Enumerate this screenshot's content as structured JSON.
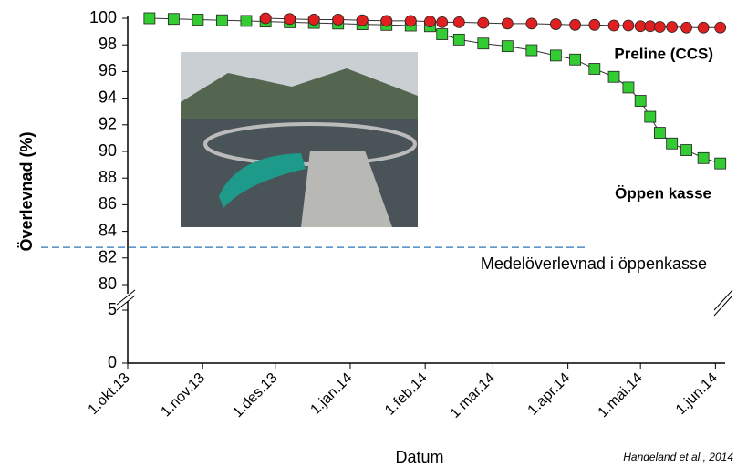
{
  "chart_data": {
    "type": "line",
    "xlabel": "Datum",
    "ylabel": "Överlevnad (%)",
    "source": "Handeland et al., 2014",
    "x": [
      "2013-10-10",
      "2013-10-20",
      "2013-10-30",
      "2013-11-09",
      "2013-11-19",
      "2013-11-27",
      "2013-12-07",
      "2013-12-17",
      "2013-12-27",
      "2014-01-06",
      "2014-01-16",
      "2014-01-26",
      "2014-02-03",
      "2014-02-08",
      "2014-02-15",
      "2014-02-25",
      "2014-03-07",
      "2014-03-17",
      "2014-03-27",
      "2014-04-04",
      "2014-04-12",
      "2014-04-20",
      "2014-04-26",
      "2014-05-01",
      "2014-05-05",
      "2014-05-09",
      "2014-05-14",
      "2014-05-20",
      "2014-05-27",
      "2014-06-03"
    ],
    "series": [
      {
        "name": "Öppen kasse",
        "color": "#33cc33",
        "marker": "square",
        "values": [
          100,
          99.95,
          99.9,
          99.85,
          99.8,
          99.75,
          99.7,
          99.65,
          99.6,
          99.55,
          99.5,
          99.45,
          99.4,
          98.8,
          98.4,
          98.1,
          97.9,
          97.6,
          97.2,
          96.9,
          96.2,
          95.6,
          94.8,
          93.8,
          92.6,
          91.4,
          90.6,
          90.1,
          89.5,
          89.1
        ]
      },
      {
        "name": "Preline (CCS)",
        "color": "#e02020",
        "marker": "circle",
        "values": [
          null,
          null,
          null,
          null,
          null,
          100,
          99.95,
          99.9,
          99.9,
          99.85,
          99.8,
          99.8,
          99.75,
          99.7,
          99.7,
          99.65,
          99.6,
          99.6,
          99.55,
          99.5,
          99.5,
          99.45,
          99.45,
          99.4,
          99.4,
          99.35,
          99.35,
          99.3,
          99.3,
          99.3
        ]
      }
    ],
    "label_color": "#1f5c99",
    "reference_line": {
      "value": 82.8,
      "label": "Medelöverlevnad i öppenkasse",
      "color": "#2e75b6"
    },
    "xlim": [
      "2013-10-01",
      "2014-06-05"
    ],
    "xticks": [
      {
        "value": "2013-10-01",
        "label": "1.okt.13"
      },
      {
        "value": "2013-11-01",
        "label": "1.nov.13"
      },
      {
        "value": "2013-12-01",
        "label": "1.des.13"
      },
      {
        "value": "2014-01-01",
        "label": "1.jan.14"
      },
      {
        "value": "2014-02-01",
        "label": "1.feb.14"
      },
      {
        "value": "2014-03-01",
        "label": "1.mar.14"
      },
      {
        "value": "2014-04-01",
        "label": "1.apr.14"
      },
      {
        "value": "2014-05-01",
        "label": "1.mai.14"
      },
      {
        "value": "2014-06-01",
        "label": "1.jun.14"
      }
    ],
    "ylim": [
      0,
      100
    ],
    "ybreak": [
      5,
      80
    ],
    "yticks": [
      0,
      5,
      80,
      82,
      84,
      86,
      88,
      90,
      92,
      94,
      96,
      98,
      100
    ],
    "grid": false
  }
}
